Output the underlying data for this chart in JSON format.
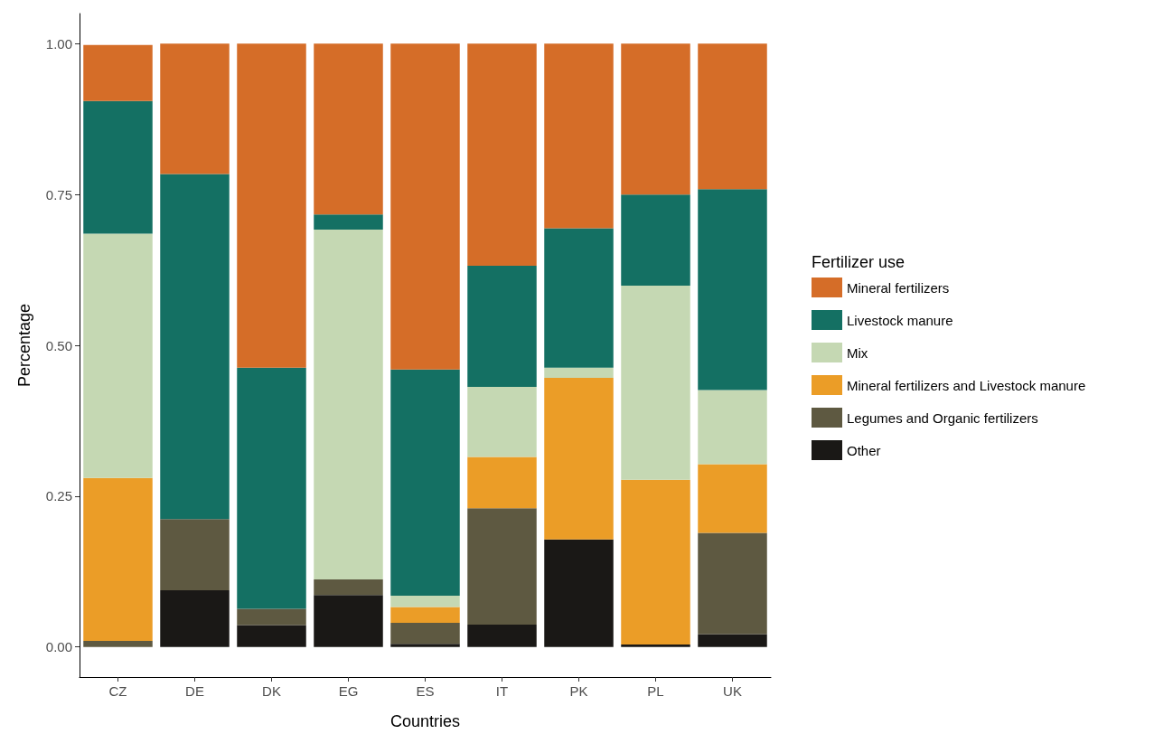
{
  "chart_data": {
    "type": "bar",
    "stacked": true,
    "xlabel": "Countries",
    "ylabel": "Percentage",
    "legend_title": "Fertilizer use",
    "legend": "right",
    "grid": false,
    "categories": [
      "CZ",
      "DE",
      "DK",
      "EG",
      "ES",
      "IT",
      "PK",
      "PL",
      "UK"
    ],
    "ylim": [
      -0.05,
      1.05
    ],
    "yticks": [
      {
        "value": 0,
        "label": "0.00"
      },
      {
        "value": 0.25,
        "label": "0.25"
      },
      {
        "value": 0.5,
        "label": "0.50"
      },
      {
        "value": 0.75,
        "label": "0.75"
      },
      {
        "value": 1,
        "label": "1.00"
      }
    ],
    "series": [
      {
        "name": "Other",
        "color": "#1a1816",
        "values": [
          0,
          0.094,
          0.036,
          0.086,
          0.005,
          0.037,
          0.178,
          0.004,
          0.021
        ]
      },
      {
        "name": "Legumes and Organic fertilizers",
        "color": "#5e5941",
        "values": [
          0.01,
          0.118,
          0.027,
          0.026,
          0.035,
          0.193,
          0,
          0,
          0.168
        ]
      },
      {
        "name": "Mineral fertilizers and Livestock manure",
        "color": "#eb9d27",
        "values": [
          0.27,
          0,
          0,
          0,
          0.026,
          0.085,
          0.268,
          0.273,
          0.114
        ]
      },
      {
        "name": "Mix",
        "color": "#c5d8b3",
        "values": [
          0.405,
          0,
          0,
          0.58,
          0.019,
          0.116,
          0.017,
          0.322,
          0.123
        ]
      },
      {
        "name": "Livestock manure",
        "color": "#147063",
        "values": [
          0.22,
          0.572,
          0.4,
          0.025,
          0.375,
          0.201,
          0.231,
          0.151,
          0.333
        ]
      },
      {
        "name": "Mineral fertilizers",
        "color": "#d56d28",
        "values": [
          0.093,
          0.216,
          0.537,
          0.283,
          0.54,
          0.368,
          0.306,
          0.25,
          0.241
        ]
      }
    ]
  }
}
